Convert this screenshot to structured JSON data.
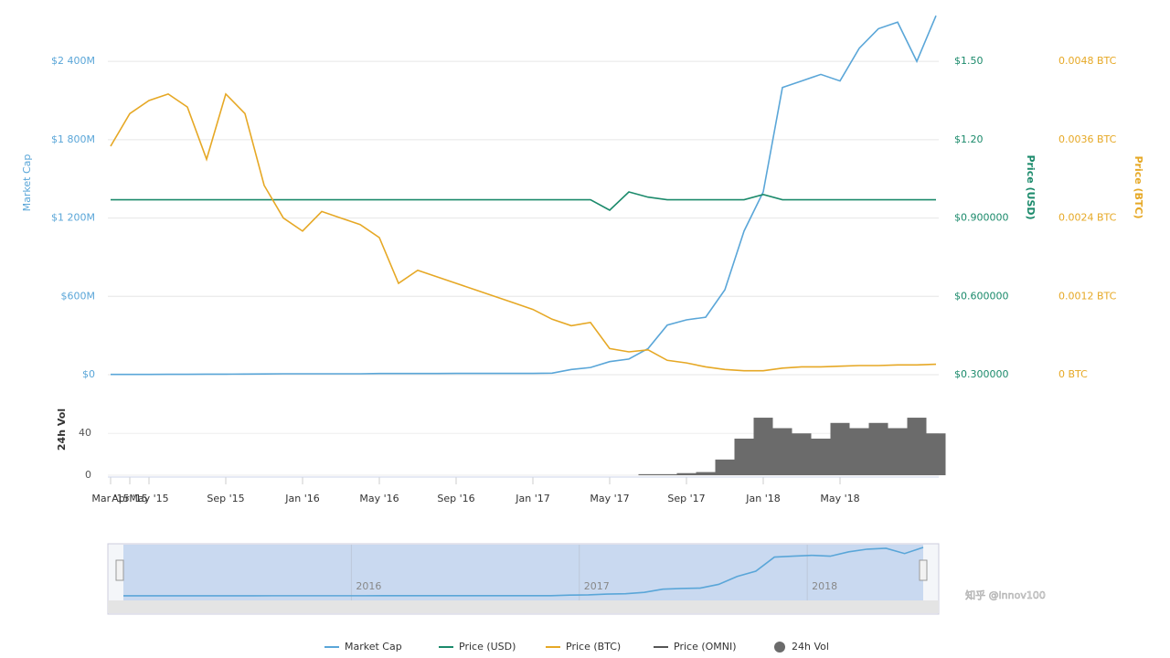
{
  "chart_data": {
    "type": "line",
    "categories": [
      "Mar '15",
      "Apr '15",
      "May '15",
      null,
      null,
      null,
      "Sep '15",
      null,
      null,
      null,
      "Jan '16",
      null,
      null,
      null,
      "May '16",
      null,
      null,
      null,
      "Sep '16",
      null,
      null,
      null,
      "Jan '17",
      null,
      null,
      null,
      "May '17",
      null,
      null,
      null,
      "Sep '17",
      null,
      null,
      null,
      "Jan '18",
      null,
      null,
      null,
      "May '18",
      null,
      null,
      null,
      null,
      null
    ],
    "y_label": "Market Cap",
    "ylim": [
      0,
      2800
    ],
    "yticks": [
      {
        "value": 0,
        "label": "$0"
      },
      {
        "value": 600,
        "label": "$600M"
      },
      {
        "value": 1200,
        "label": "$1 200M"
      },
      {
        "value": 1800,
        "label": "$1 800M"
      },
      {
        "value": 2400,
        "label": "$2 400M"
      }
    ],
    "y2_label": "Price (USD)",
    "y2lim": [
      0.3,
      1.7
    ],
    "y2ticks": [
      {
        "value": 0.3,
        "label": "$0.300000"
      },
      {
        "value": 0.6,
        "label": "$0.600000"
      },
      {
        "value": 0.9,
        "label": "$0.900000"
      },
      {
        "value": 1.2,
        "label": "$1.20"
      },
      {
        "value": 1.5,
        "label": "$1.50"
      }
    ],
    "y3_label": "Price (BTC)",
    "y3lim": [
      0,
      0.0056
    ],
    "y3ticks": [
      {
        "value": 0,
        "label": "0 BTC"
      },
      {
        "value": 0.0012,
        "label": "0.0012 BTC"
      },
      {
        "value": 0.0024,
        "label": "0.0024 BTC"
      },
      {
        "value": 0.0036,
        "label": "0.0036 BTC"
      },
      {
        "value": 0.0048,
        "label": "0.0048 BTC"
      }
    ],
    "grid": true,
    "series": [
      {
        "name": "Market Cap",
        "color": "#5aa6d8",
        "values": [
          2,
          2,
          2,
          3,
          3,
          4,
          4,
          5,
          6,
          7,
          7,
          7,
          7,
          7,
          9,
          9,
          9,
          9,
          10,
          10,
          10,
          10,
          10,
          12,
          40,
          55,
          100,
          120,
          200,
          380,
          420,
          440,
          650,
          1100,
          1400,
          2200,
          2250,
          2300,
          2250,
          2500,
          2650,
          2700,
          2400,
          2750
        ]
      },
      {
        "name": "Price (USD)",
        "color": "#1b8a6b",
        "axis": "y2",
        "values": [
          0.97,
          0.97,
          0.97,
          0.97,
          0.97,
          0.97,
          0.97,
          0.97,
          0.97,
          0.97,
          0.97,
          0.97,
          0.97,
          0.97,
          0.97,
          0.97,
          0.97,
          0.97,
          0.97,
          0.97,
          0.97,
          0.97,
          0.97,
          0.97,
          0.97,
          0.97,
          0.93,
          1.0,
          0.98,
          0.97,
          0.97,
          0.97,
          0.97,
          0.97,
          0.99,
          0.97,
          0.97,
          0.97,
          0.97,
          0.97,
          0.97,
          0.97,
          0.97,
          0.97
        ]
      },
      {
        "name": "Price (BTC)",
        "color": "#e6a825",
        "axis": "y3",
        "values": [
          0.0035,
          0.004,
          0.0042,
          0.0043,
          0.0041,
          0.0033,
          0.0043,
          0.004,
          0.0029,
          0.0024,
          0.0022,
          0.0025,
          0.0024,
          0.0023,
          0.0021,
          0.0014,
          0.0016,
          0.0015,
          0.0014,
          0.0013,
          0.0012,
          0.0011,
          0.001,
          0.00085,
          0.00075,
          0.0008,
          0.0004,
          0.00035,
          0.00038,
          0.00022,
          0.00018,
          0.00012,
          8e-05,
          6e-05,
          6e-05,
          0.0001,
          0.00012,
          0.00012,
          0.00013,
          0.00014,
          0.00014,
          0.00015,
          0.00015,
          0.00016
        ]
      },
      {
        "name": "Price (OMNI)",
        "color": "#555555",
        "axis": "y2",
        "values": [
          null,
          null,
          null,
          null,
          null,
          null,
          null,
          null,
          null,
          null,
          null,
          null,
          null,
          null,
          null,
          null,
          null,
          null,
          null,
          null,
          null,
          null,
          null,
          null,
          null,
          null,
          null,
          null,
          null,
          null,
          null,
          null,
          null,
          null,
          null,
          null,
          null,
          null,
          null,
          null,
          null,
          null,
          null,
          null
        ]
      }
    ],
    "volume": {
      "type": "bar",
      "name": "24h Vol",
      "y_label": "24h Vol",
      "color": "#6b6b6b",
      "ylim": [
        0,
        90
      ],
      "yticks": [
        0,
        40
      ],
      "values": [
        0,
        0,
        0,
        0,
        0,
        0,
        0,
        0,
        0,
        0,
        0,
        0,
        0,
        0,
        0,
        0,
        0,
        0,
        0,
        0,
        0,
        0,
        0,
        0,
        0,
        0,
        0,
        0,
        1,
        1,
        2,
        3,
        15,
        35,
        55,
        45,
        40,
        35,
        50,
        45,
        50,
        45,
        55,
        40
      ]
    },
    "navigator": {
      "years": [
        "2016",
        "2017",
        "2018"
      ]
    },
    "watermark": "知乎 @innov100"
  }
}
